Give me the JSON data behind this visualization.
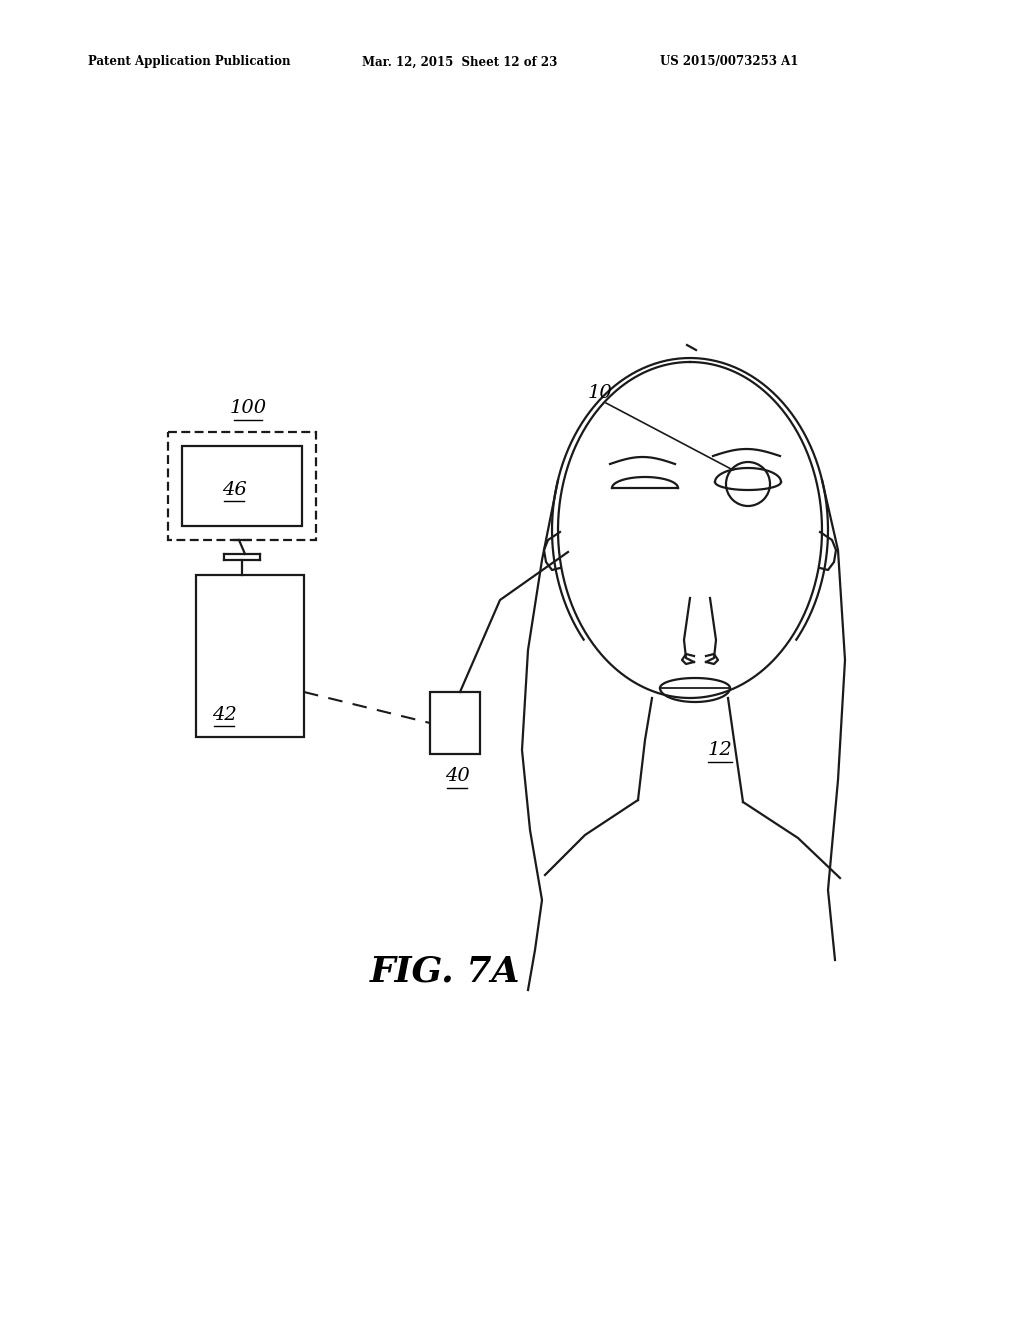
{
  "bg_color": "#ffffff",
  "line_color": "#1a1a1a",
  "header_left": "Patent Application Publication",
  "header_mid": "Mar. 12, 2015  Sheet 12 of 23",
  "header_right": "US 2015/0073253 A1",
  "fig_label": "FIG. 7A",
  "label_100": "100",
  "label_10": "10",
  "label_12": "12",
  "label_40": "40",
  "label_42": "42",
  "label_46": "46"
}
